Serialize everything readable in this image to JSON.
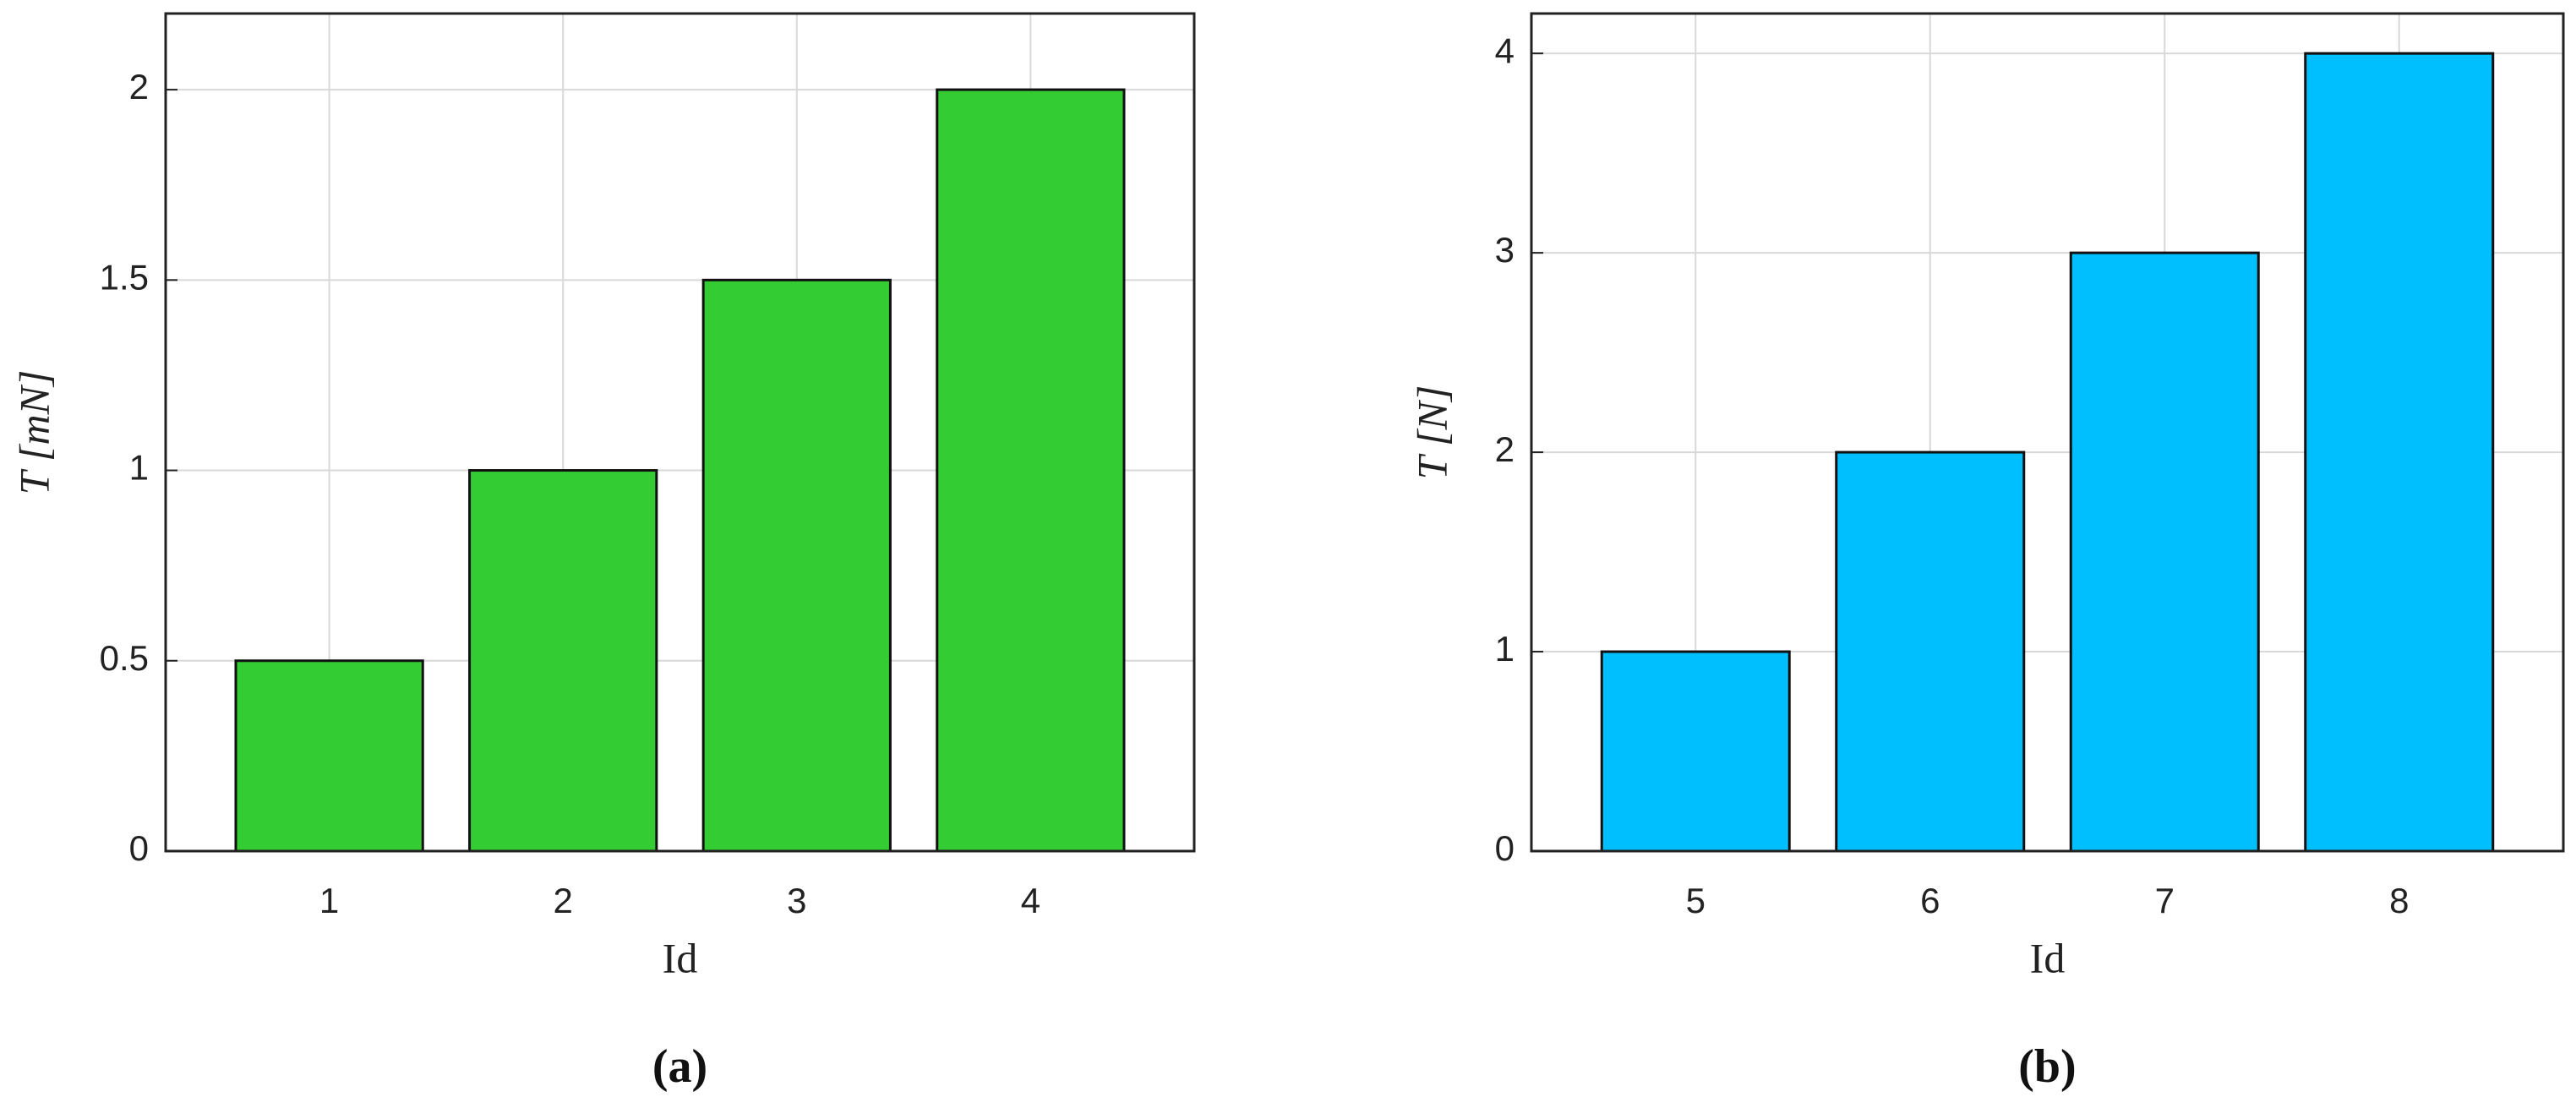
{
  "chart_data": [
    {
      "type": "bar",
      "x": [
        1,
        2,
        3,
        4
      ],
      "values": [
        0.5,
        1,
        1.5,
        2
      ],
      "color": "#33cc33",
      "xlim": [
        0.3,
        4.7
      ],
      "xticks": [
        1,
        2,
        3,
        4
      ],
      "ylim": [
        0,
        2.2
      ],
      "yticks": [
        0,
        0.5,
        1,
        1.5,
        2
      ],
      "x_label": "Id",
      "y_label": "T [mN]",
      "caption": "(a)",
      "grid": true
    },
    {
      "type": "bar",
      "x": [
        5,
        6,
        7,
        8
      ],
      "values": [
        1,
        2,
        3,
        4
      ],
      "color": "#00bfff",
      "xlim": [
        4.3,
        8.7
      ],
      "xticks": [
        5,
        6,
        7,
        8
      ],
      "ylim": [
        0,
        4.2
      ],
      "yticks": [
        0,
        1,
        2,
        3,
        4
      ],
      "x_label": "Id",
      "y_label": "T [N]",
      "caption": "(b)",
      "grid": true
    }
  ]
}
